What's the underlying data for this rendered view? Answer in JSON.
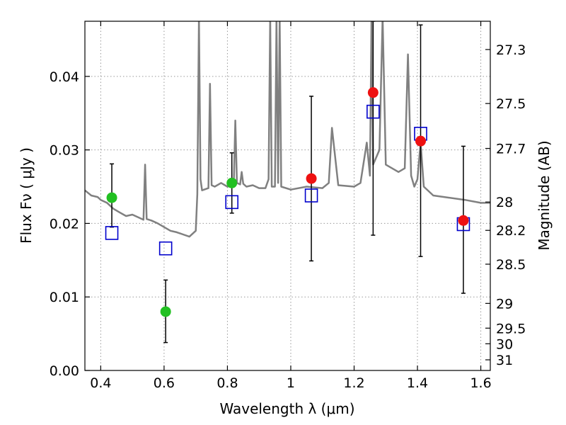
{
  "chart_data": {
    "type": "scatter",
    "xlabel": "Wavelength  λ (μm)",
    "ylabel": "Flux  Fν  ( μJy )",
    "ylabel_right": "Magnitude (AB)",
    "xlim": [
      0.35,
      1.63
    ],
    "ylim": [
      0.0,
      0.0475
    ],
    "grid": true,
    "x_ticks": [
      0.4,
      0.6,
      0.8,
      1.0,
      1.2,
      1.4,
      1.6
    ],
    "x_tick_labels": [
      "0.4",
      "0.6",
      "0.8",
      "1",
      "1.2",
      "1.4",
      "1.6"
    ],
    "y_ticks": [
      0.0,
      0.01,
      0.02,
      0.03,
      0.04
    ],
    "y_tick_labels": [
      "0.00",
      "0.01",
      "0.02",
      "0.03",
      "0.04"
    ],
    "mag_ticks": [
      27.3,
      27.5,
      27.7,
      28.0,
      28.2,
      28.5,
      29.0,
      29.5,
      30.0,
      31.0
    ],
    "mag_tick_labels": [
      "27.3",
      "27.5",
      "27.7",
      "28",
      "28.2",
      "28.5",
      "29",
      "29.5",
      "30",
      "31"
    ],
    "colors": {
      "spectrum": "#808080",
      "green_points": "#22c022",
      "red_points": "#ee1111",
      "model_boxes": "#0000cc",
      "errorbars": "#000000",
      "grid": "#999999"
    },
    "series": [
      {
        "name": "observed-green",
        "x": [
          0.435,
          0.605,
          0.814
        ],
        "y": [
          0.0235,
          0.008,
          0.0255
        ],
        "yerr_low": [
          0.0195,
          0.0038,
          0.0214
        ],
        "yerr_high": [
          0.0281,
          0.0123,
          0.0296
        ]
      },
      {
        "name": "observed-red",
        "x": [
          1.065,
          1.26,
          1.41,
          1.545
        ],
        "y": [
          0.0261,
          0.0378,
          0.0312,
          0.0204
        ],
        "yerr_low": [
          0.0149,
          0.0184,
          0.0155,
          0.0105
        ],
        "yerr_high": [
          0.0373,
          0.0475,
          0.047,
          0.0305
        ]
      },
      {
        "name": "model-photometry",
        "x": [
          0.435,
          0.605,
          0.814,
          1.065,
          1.26,
          1.41,
          1.545
        ],
        "y": [
          0.0187,
          0.0166,
          0.0229,
          0.0238,
          0.0352,
          0.0322,
          0.0199
        ]
      }
    ],
    "spectrum": {
      "x": [
        0.35,
        0.37,
        0.39,
        0.4,
        0.42,
        0.44,
        0.46,
        0.48,
        0.5,
        0.52,
        0.535,
        0.54,
        0.545,
        0.56,
        0.58,
        0.6,
        0.62,
        0.64,
        0.66,
        0.68,
        0.7,
        0.705,
        0.71,
        0.715,
        0.72,
        0.74,
        0.745,
        0.75,
        0.76,
        0.78,
        0.8,
        0.82,
        0.825,
        0.83,
        0.84,
        0.845,
        0.85,
        0.86,
        0.88,
        0.9,
        0.92,
        0.93,
        0.935,
        0.94,
        0.95,
        0.955,
        0.96,
        0.965,
        0.97,
        1.0,
        1.05,
        1.1,
        1.12,
        1.13,
        1.15,
        1.2,
        1.22,
        1.24,
        1.25,
        1.255,
        1.26,
        1.28,
        1.29,
        1.3,
        1.34,
        1.36,
        1.37,
        1.38,
        1.39,
        1.4,
        1.41,
        1.42,
        1.45,
        1.5,
        1.55,
        1.6,
        1.63
      ],
      "y": [
        0.0245,
        0.0238,
        0.0236,
        0.0232,
        0.0228,
        0.022,
        0.0215,
        0.021,
        0.0212,
        0.0208,
        0.0205,
        0.028,
        0.0206,
        0.0204,
        0.02,
        0.0195,
        0.019,
        0.0188,
        0.0185,
        0.0182,
        0.019,
        0.024,
        0.048,
        0.026,
        0.0245,
        0.0248,
        0.039,
        0.0252,
        0.025,
        0.0255,
        0.025,
        0.0252,
        0.034,
        0.0255,
        0.0253,
        0.027,
        0.0254,
        0.025,
        0.0252,
        0.0248,
        0.0248,
        0.026,
        0.048,
        0.025,
        0.025,
        0.048,
        0.0255,
        0.048,
        0.025,
        0.0246,
        0.025,
        0.0248,
        0.0255,
        0.033,
        0.0252,
        0.025,
        0.0255,
        0.031,
        0.0265,
        0.048,
        0.028,
        0.03,
        0.048,
        0.028,
        0.027,
        0.0275,
        0.043,
        0.0265,
        0.025,
        0.026,
        0.031,
        0.025,
        0.0238,
        0.0235,
        0.0232,
        0.0228,
        0.0228
      ]
    }
  }
}
